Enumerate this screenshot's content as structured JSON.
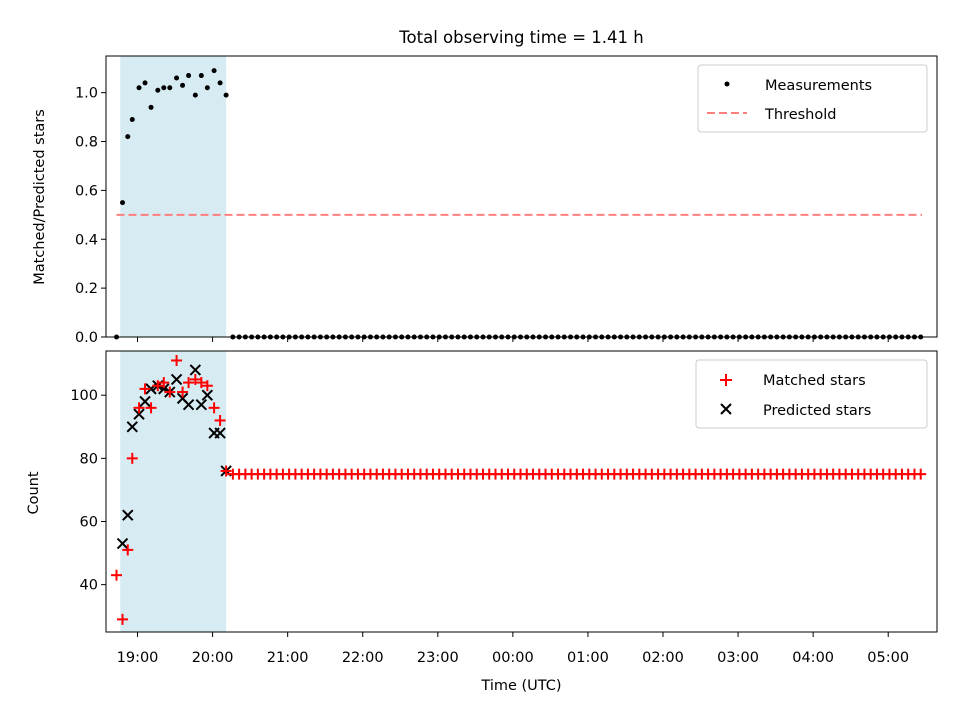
{
  "colors": {
    "span": "#add8e6",
    "measurement": "#000000",
    "threshold": "#ff7f7f",
    "matched": "#ff0000",
    "predicted": "#000000"
  },
  "chart_data": [
    {
      "type": "scatter",
      "title": "Total observing time = 1.41 h",
      "xlabel": "",
      "ylabel": "Matched/Predicted stars",
      "ylim": [
        0,
        1.15
      ],
      "xlim": [
        18.58,
        29.65
      ],
      "yticks": [
        "0.0",
        "0.2",
        "0.4",
        "0.6",
        "0.8",
        "1.0"
      ],
      "grid": false,
      "legend": "top-right",
      "shaded_span": [
        18.77,
        20.18
      ],
      "threshold": {
        "name": "Threshold",
        "value": 0.5,
        "x_range": [
          18.72,
          29.45
        ]
      },
      "measurements": {
        "name": "Measurements",
        "x": [
          18.72,
          18.8,
          18.87,
          18.93,
          19.02,
          19.1,
          19.18,
          19.27,
          19.35,
          19.43,
          19.52,
          19.6,
          19.68,
          19.77,
          19.85,
          19.93,
          20.02,
          20.1,
          20.18
        ],
        "y": [
          0.0,
          0.55,
          0.82,
          0.89,
          1.02,
          1.04,
          0.94,
          1.01,
          1.02,
          1.02,
          1.06,
          1.03,
          1.07,
          0.99,
          1.07,
          1.02,
          1.09,
          1.04,
          0.99
        ]
      },
      "zero_measurements": {
        "x_start": 20.27,
        "x_end": 29.45,
        "step": 0.0833,
        "y": 0.0
      }
    },
    {
      "type": "scatter",
      "title": "",
      "xlabel": "Time (UTC)",
      "ylabel": "Count",
      "ylim": [
        25,
        114
      ],
      "xlim": [
        18.58,
        29.65
      ],
      "yticks": [
        "40",
        "60",
        "80",
        "100"
      ],
      "xtick_labels": [
        "19:00",
        "20:00",
        "21:00",
        "22:00",
        "23:00",
        "00:00",
        "01:00",
        "02:00",
        "03:00",
        "04:00",
        "05:00"
      ],
      "grid": false,
      "legend": "top-right",
      "shaded_span": [
        18.77,
        20.18
      ],
      "series": [
        {
          "name": "Matched stars",
          "x": [
            18.72,
            18.8,
            18.87,
            18.93,
            19.02,
            19.1,
            19.18,
            19.27,
            19.35,
            19.43,
            19.52,
            19.6,
            19.68,
            19.77,
            19.85,
            19.93,
            20.02,
            20.1,
            20.18
          ],
          "y": [
            43,
            29,
            51,
            80,
            96,
            102,
            96,
            103,
            104,
            101,
            111,
            101,
            104,
            105,
            104,
            103,
            96,
            92,
            76
          ]
        },
        {
          "name": "Predicted stars",
          "x": [
            18.8,
            18.87,
            18.93,
            19.02,
            19.1,
            19.18,
            19.27,
            19.35,
            19.43,
            19.52,
            19.6,
            19.68,
            19.77,
            19.85,
            19.93,
            20.02,
            20.1,
            20.18
          ],
          "y": [
            53,
            62,
            90,
            94,
            98,
            102,
            103,
            102,
            101,
            105,
            99,
            97,
            108,
            97,
            100,
            88,
            88,
            76
          ]
        }
      ],
      "matched_plateau": {
        "x_start": 20.27,
        "x_end": 29.45,
        "step": 0.0833,
        "y": 75
      }
    }
  ]
}
